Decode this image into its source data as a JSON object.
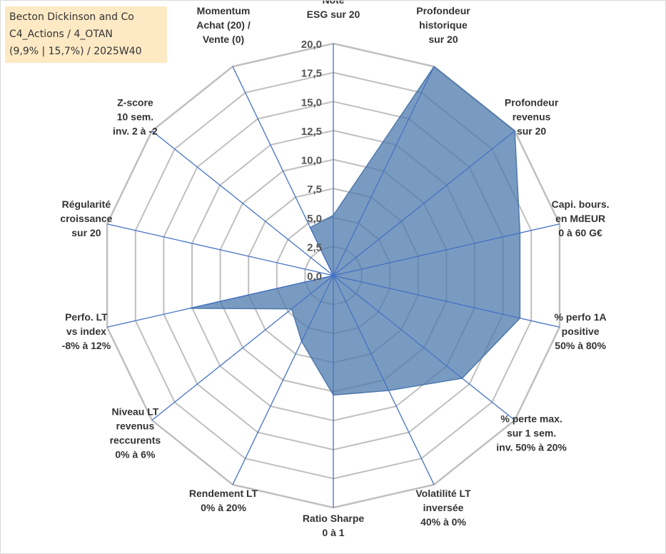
{
  "info": {
    "company": "Becton Dickinson and Co",
    "category": "C4_Actions / 4_OTAN",
    "stats": "(9,9% | 15,7%) / 2025W40"
  },
  "chart_data": {
    "type": "radar",
    "scale_min": 0,
    "scale_max": 20,
    "tick_labels": [
      "0,0",
      "2,5",
      "5,0",
      "7,5",
      "10,0",
      "12,5",
      "15,0",
      "17,5",
      "20,0"
    ],
    "axes": [
      [
        "Note",
        "ESG sur 20"
      ],
      [
        "Profondeur",
        "historique",
        "sur 20"
      ],
      [
        "Profondeur",
        "revenus",
        "sur 20"
      ],
      [
        "Capi. bours.",
        "en MdEUR",
        "0 à 60 G€"
      ],
      [
        "% perfo 1A",
        "positive",
        "50% à 80%"
      ],
      [
        "% perte max.",
        "sur 1 sem.",
        "inv. 50% à 20%"
      ],
      [
        "Volatilité LT",
        "inversée",
        "40% à 0%"
      ],
      [
        "Ratio Sharpe",
        "0 à 1"
      ],
      [
        "Rendement LT",
        "0% à 20%"
      ],
      [
        "Niveau LT",
        "revenus",
        "reccurents",
        "0% à 6%"
      ],
      [
        "Perfo. LT",
        "vs index",
        "-8% à 12%"
      ],
      [
        "Régularité",
        "croissance",
        "sur 20"
      ],
      [
        "Z-score",
        "10 sem.",
        "inv. 2 à -2"
      ],
      [
        "Momentum",
        "Achat (20) /",
        "Vente (0)"
      ]
    ],
    "values": [
      5.2,
      20,
      20,
      16.5,
      16.5,
      14.2,
      11.0,
      10.3,
      6.3,
      4.6,
      12.7,
      0,
      0,
      4.6
    ],
    "colors": {
      "fill": "#4e79ac",
      "fill_opacity": 0.75,
      "outline": "#4e79ac",
      "spoke": "#4472c4",
      "grid": "#bfbfbf"
    }
  }
}
